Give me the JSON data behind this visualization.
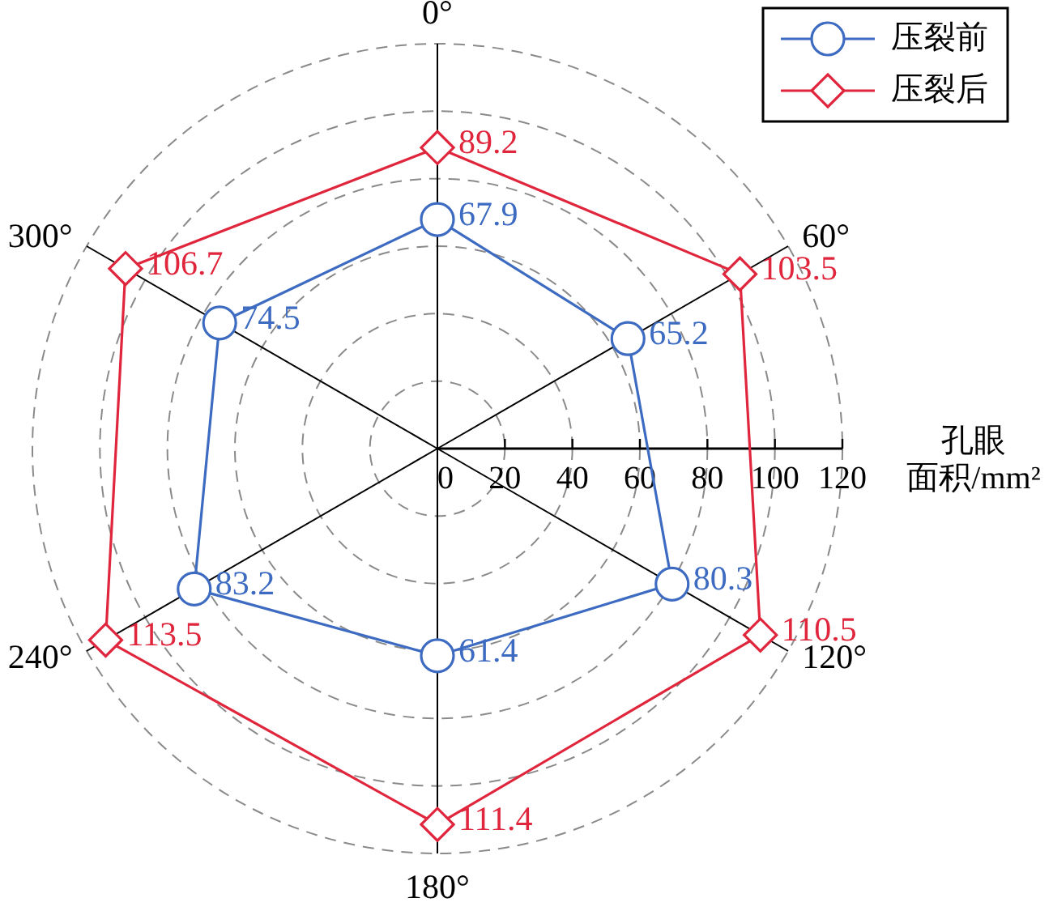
{
  "chart_data": {
    "type": "radar",
    "categories": [
      "0°",
      "60°",
      "120°",
      "180°",
      "240°",
      "300°"
    ],
    "series": [
      {
        "name": "压裂前",
        "color": "#3d6bc1",
        "marker": "circle",
        "values": [
          67.9,
          65.2,
          80.3,
          61.4,
          83.2,
          74.5
        ]
      },
      {
        "name": "压裂后",
        "color": "#e0263c",
        "marker": "diamond",
        "values": [
          89.2,
          103.5,
          110.5,
          111.4,
          113.5,
          106.7
        ]
      }
    ],
    "ylabel": "孔眼面积/mm²",
    "ylim": [
      0,
      120
    ],
    "yticks": [
      0,
      20,
      40,
      60,
      80,
      100,
      120
    ],
    "grid": true,
    "legend": "top right",
    "data_labels": true
  }
}
